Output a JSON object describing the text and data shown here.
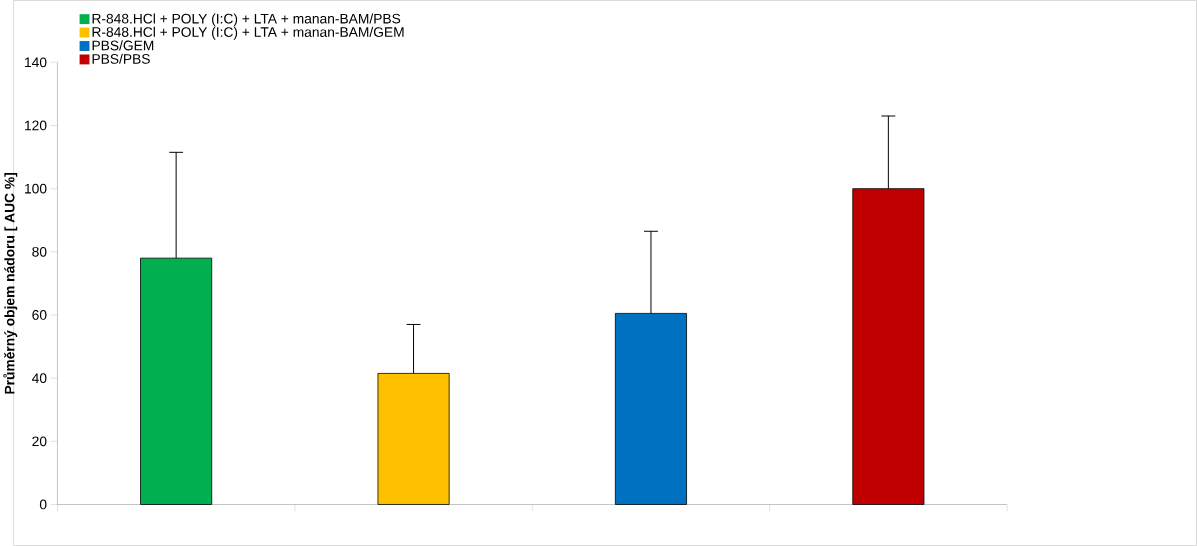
{
  "chart_data": {
    "type": "bar",
    "ylabel": "Průměrný objem nádoru [ AUC %]",
    "categories": [
      null,
      null,
      null,
      null
    ],
    "series": [
      {
        "name": "R-848.HCl + POLY (I:C) + LTA + manan-BAM/PBS",
        "color": "#00b050",
        "values": [
          78,
          null,
          null,
          null
        ],
        "errors": [
          [
            78,
            111.5
          ],
          null,
          null,
          null
        ]
      },
      {
        "name": "R-848.HCl + POLY (I:C) + LTA + manan-BAM/GEM",
        "color": "#ffc000",
        "values": [
          null,
          41.5,
          null,
          null
        ],
        "errors": [
          null,
          [
            41.5,
            57
          ],
          null,
          null
        ]
      },
      {
        "name": "PBS/GEM",
        "color": "#0070c0",
        "values": [
          null,
          null,
          60.5,
          null
        ],
        "errors": [
          null,
          null,
          [
            60.5,
            86.5
          ],
          null
        ]
      },
      {
        "name": "PBS/PBS",
        "color": "#c00000",
        "values": [
          null,
          null,
          null,
          100
        ],
        "errors": [
          null,
          null,
          null,
          [
            100,
            123
          ]
        ]
      }
    ],
    "ylim": [
      0,
      140
    ],
    "yticks": [
      0,
      20,
      40,
      60,
      80,
      100,
      120,
      140
    ],
    "grid": false,
    "legend": "top left"
  }
}
